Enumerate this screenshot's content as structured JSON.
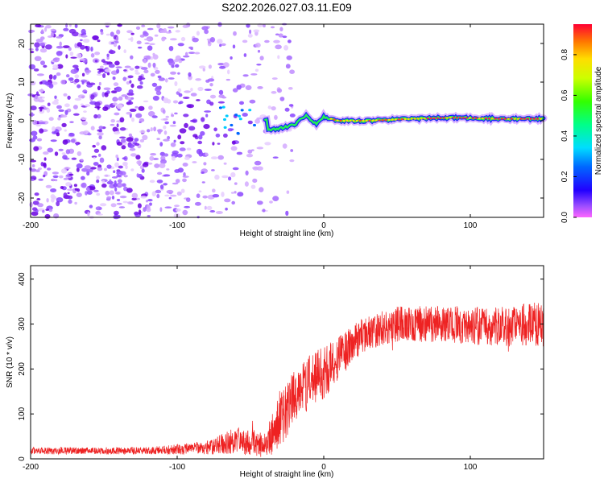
{
  "chart_data": [
    {
      "type": "heatmap",
      "title": "S202.2026.027.03.11.E09",
      "xlabel": "Height of straight line (km)",
      "ylabel": "Frequency (Hz)",
      "xlim": [
        -200,
        150
      ],
      "ylim": [
        -25,
        25
      ],
      "x_ticks": [
        "-200",
        "-100",
        "0",
        "100"
      ],
      "x_tick_values": [
        -200,
        -100,
        0,
        100
      ],
      "y_ticks": [
        "20",
        "10",
        "0",
        "-10",
        "-20"
      ],
      "y_tick_values": [
        20,
        10,
        0,
        -10,
        -20
      ],
      "colorbar": {
        "label": "Normalized spectral amplitude",
        "range": [
          0,
          0.95
        ],
        "ticks": [
          "0.0",
          "0.2",
          "0.4",
          "0.6",
          "0.8"
        ],
        "tick_values": [
          0.0,
          0.2,
          0.4,
          0.6,
          0.8
        ]
      },
      "features": {
        "noise_region_km": [
          -200,
          -40
        ],
        "signal_onset_km": -40,
        "signal_track_km": [
          -40,
          150
        ],
        "track_freq_hz": [
          {
            "x": -38,
            "f": -2.5
          },
          {
            "x": -30,
            "f": -2.0
          },
          {
            "x": -20,
            "f": -1.0
          },
          {
            "x": -12,
            "f": 1.5
          },
          {
            "x": -5,
            "f": -1.0
          },
          {
            "x": 0,
            "f": 1.0
          },
          {
            "x": 10,
            "f": 0.0
          },
          {
            "x": 30,
            "f": 0.0
          },
          {
            "x": 60,
            "f": 0.5
          },
          {
            "x": 90,
            "f": 0.8
          },
          {
            "x": 120,
            "f": 0.5
          },
          {
            "x": 150,
            "f": 0.5
          }
        ]
      }
    },
    {
      "type": "line",
      "xlabel": "Height of straight line (km)",
      "ylabel": "SNR (10 * v/v)",
      "xlim": [
        -200,
        150
      ],
      "ylim": [
        0,
        430
      ],
      "x_ticks": [
        "-200",
        "-100",
        "0",
        "100"
      ],
      "x_tick_values": [
        -200,
        -100,
        0,
        100
      ],
      "y_ticks": [
        "0",
        "100",
        "200",
        "300",
        "400"
      ],
      "y_tick_values": [
        0,
        100,
        200,
        300,
        400
      ],
      "series": [
        {
          "name": "SNR",
          "color": "#ee2222",
          "trend_x": [
            -200,
            -120,
            -80,
            -60,
            -40,
            -30,
            -20,
            -10,
            0,
            10,
            20,
            30,
            50,
            80,
            120,
            150
          ],
          "trend_y": [
            18,
            18,
            25,
            40,
            30,
            80,
            140,
            170,
            190,
            220,
            260,
            280,
            300,
            300,
            295,
            300
          ],
          "noise_amplitude": [
            8,
            8,
            15,
            30,
            30,
            60,
            60,
            60,
            60,
            50,
            40,
            40,
            40,
            40,
            45,
            50
          ]
        }
      ]
    }
  ]
}
